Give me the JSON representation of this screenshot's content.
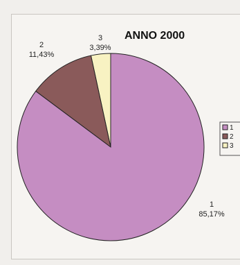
{
  "chart_data": {
    "type": "pie",
    "title": "ANNO 2000",
    "slices": [
      {
        "label": "1",
        "percent_label": "85,17%",
        "value": 85.17,
        "color": "#c58dc2"
      },
      {
        "label": "2",
        "percent_label": "11,43%",
        "value": 11.43,
        "color": "#8a5a5a"
      },
      {
        "label": "3",
        "percent_label": "3,39%",
        "value": 3.39,
        "color": "#f8f2c2"
      }
    ],
    "legend": {
      "placement": "right",
      "entries": [
        "1",
        "2",
        "3"
      ]
    }
  }
}
